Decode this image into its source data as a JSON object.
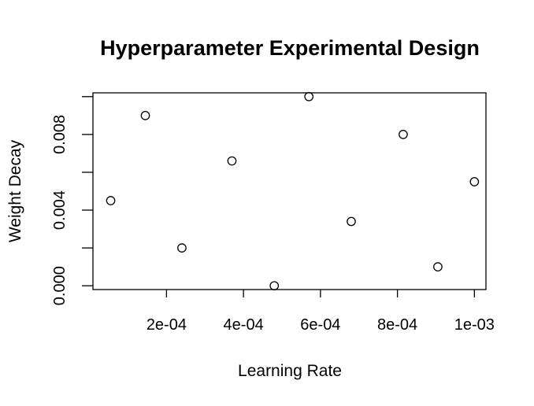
{
  "chart_data": {
    "type": "scatter",
    "title": "Hyperparameter Experimental Design",
    "xlabel": "Learning Rate",
    "ylabel": "Weight Decay",
    "xlim": [
      8.88e-06,
      0.00103
    ],
    "ylim": [
      -0.0002,
      0.0102
    ],
    "xticks": [
      0.0002,
      0.0004,
      0.0006,
      0.0008,
      0.001
    ],
    "xtick_labels": [
      "2e-04",
      "4e-04",
      "6e-04",
      "8e-04",
      "1e-03"
    ],
    "yticks": [
      0.0,
      0.002,
      0.004,
      0.006,
      0.008,
      0.01
    ],
    "ytick_labels": [
      "0.000",
      "",
      "0.004",
      "",
      "0.008",
      ""
    ],
    "grid": false,
    "points": [
      {
        "x": 5.5e-05,
        "y": 0.0045
      },
      {
        "x": 0.000145,
        "y": 0.009
      },
      {
        "x": 0.00024,
        "y": 0.002
      },
      {
        "x": 0.00037,
        "y": 0.0066
      },
      {
        "x": 0.00048,
        "y": 0.0
      },
      {
        "x": 0.00057,
        "y": 0.01
      },
      {
        "x": 0.00068,
        "y": 0.0034
      },
      {
        "x": 0.000815,
        "y": 0.008
      },
      {
        "x": 0.000905,
        "y": 0.001
      },
      {
        "x": 0.001,
        "y": 0.0055
      }
    ]
  }
}
